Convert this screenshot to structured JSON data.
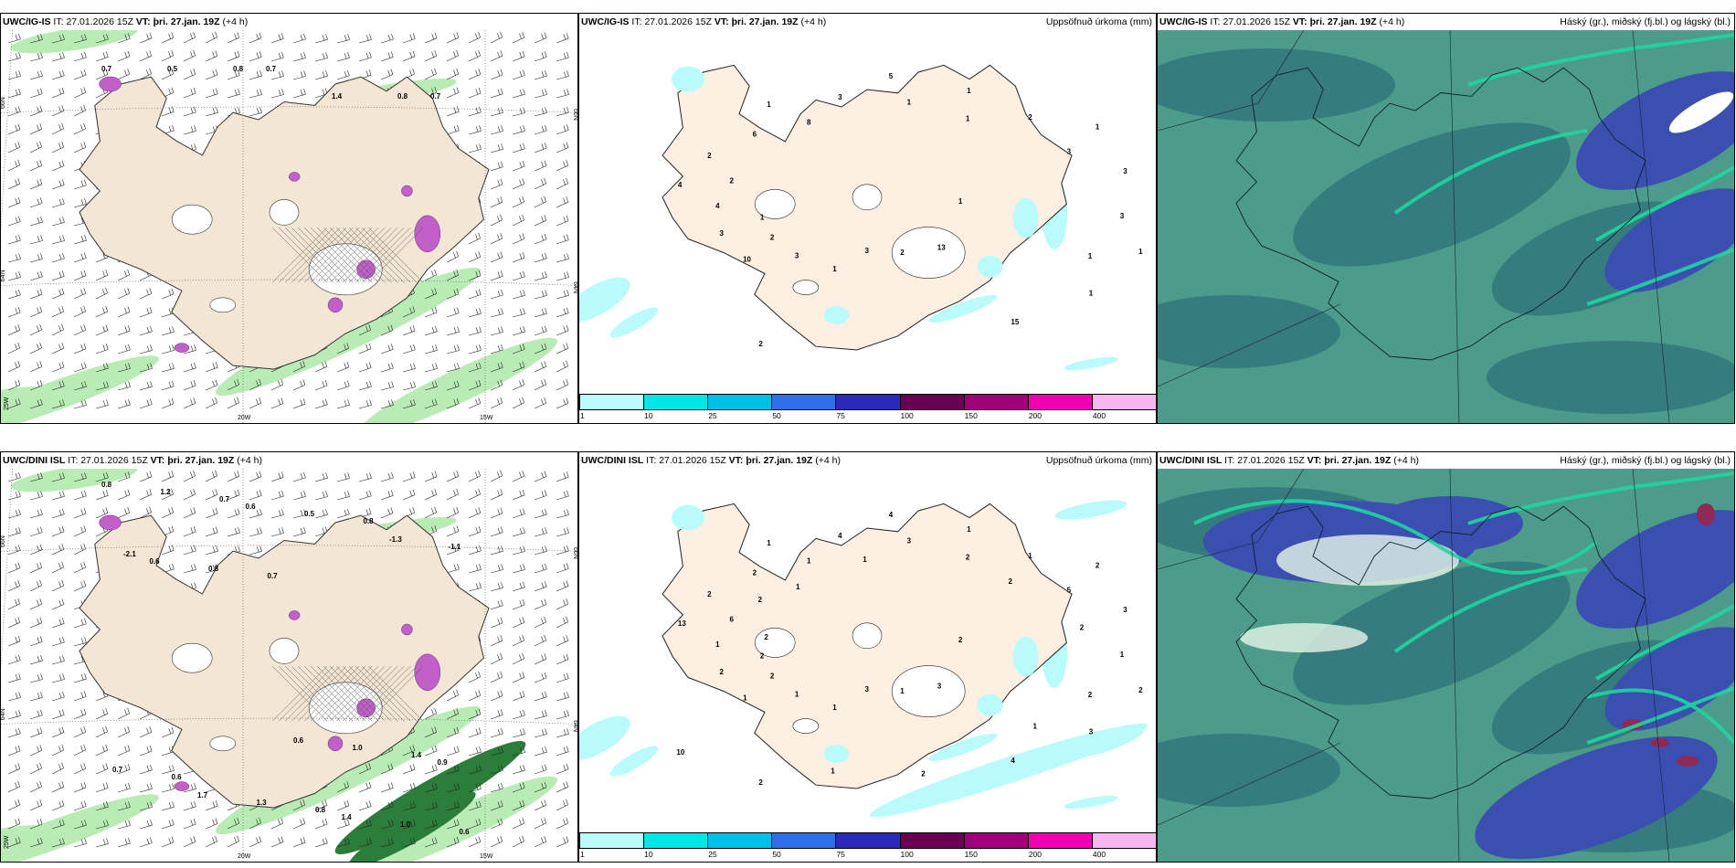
{
  "rows": [
    {
      "model": "UWC/IG-IS",
      "it_label": "IT:",
      "it_value": "27.01.2026 15Z",
      "vt_label": "VT:",
      "vt_value": "þri. 27.jan. 19Z",
      "lead": "(+4 h)",
      "wind_values": [
        "0.7",
        "0.5",
        "0.8",
        "0.7",
        "1.4",
        "0.8",
        "0.7"
      ],
      "precip_values": [
        "1",
        "10",
        "5",
        "13",
        "4",
        "1",
        "1",
        "1",
        "1",
        "3",
        "1",
        "2",
        "2",
        "3",
        "3",
        "3",
        "1",
        "4",
        "2",
        "3",
        "6",
        "3",
        "2",
        "1",
        "15",
        "2",
        "3",
        "2",
        "8",
        "1",
        "1",
        "1"
      ],
      "map_labels": {
        "lat_66": "66N",
        "lat_64": "64N",
        "lon_25": "25W",
        "lon_20": "20W",
        "lon_15": "15W"
      }
    },
    {
      "model": "UWC/DINI ISL",
      "it_label": "IT:",
      "it_value": "27.01.2026 15Z",
      "vt_label": "VT:",
      "vt_value": "þri. 27.jan. 19Z",
      "lead": "(+4 h)",
      "wind_values": [
        "0.8",
        "1.2",
        "0.7",
        "0.6",
        "0.5",
        "0.8",
        "-1.3",
        "-1.1",
        "-2.1",
        "0.6",
        "0.8",
        "0.7",
        "0.6",
        "1.0",
        "1.4",
        "0.9",
        "0.7",
        "0.6",
        "1.7",
        "1.3",
        "0.8",
        "1.4",
        "1.0",
        "0.6"
      ],
      "precip_values": [
        "2",
        "1",
        "4",
        "3",
        "13",
        "2",
        "1",
        "1",
        "2",
        "2",
        "1",
        "1",
        "2",
        "3",
        "1",
        "4",
        "3",
        "1",
        "1",
        "3",
        "2",
        "1",
        "2",
        "3",
        "4",
        "6",
        "5",
        "2",
        "1",
        "2",
        "2",
        "2",
        "2",
        "2",
        "2",
        "10",
        "1",
        "1",
        "2",
        "2",
        "1",
        "1"
      ],
      "map_labels": {
        "lat_66": "66N",
        "lat_64": "64N",
        "lon_25": "25W",
        "lon_20": "20W",
        "lon_15": "15W"
      }
    }
  ],
  "precip_title": "Uppsöfnuð úrkoma (mm)",
  "cloud_title": "Háský (gr.), miðský (fj.bl.) og lágský (bl.)",
  "colorbar": {
    "ticks": [
      "1",
      "10",
      "25",
      "50",
      "75",
      "100",
      "150",
      "200",
      "400"
    ],
    "colors": [
      "#b9fbfb",
      "#00e6e6",
      "#00bfe6",
      "#2f6fe8",
      "#2a2ab8",
      "#6a0050",
      "#a0007a",
      "#f000b0",
      "#f7b6f0"
    ]
  },
  "colors": {
    "land": "#f4e6d4",
    "precip_green": "#b9ecb4",
    "precip_dark": "#2c7d3a",
    "snow": "#c060c8",
    "cloud_low": "#4d9b8a",
    "cloud_mid": "#3a4fb0",
    "cloud_high": "#e6f5e8"
  }
}
